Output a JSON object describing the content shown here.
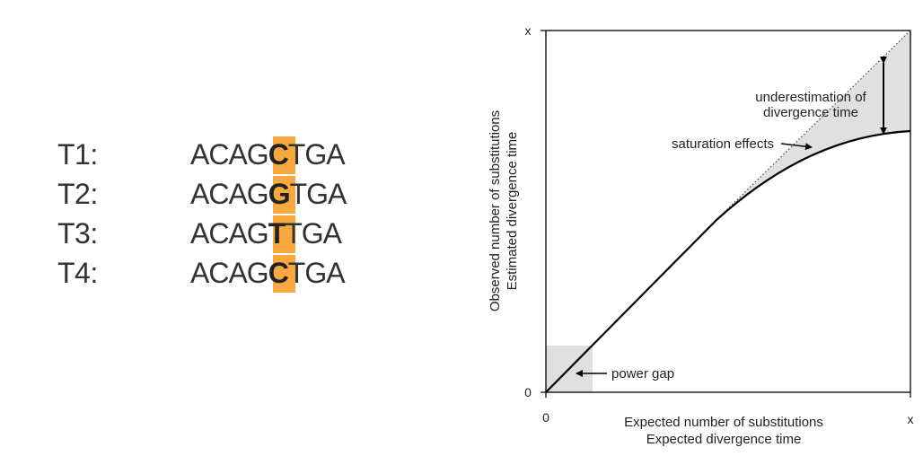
{
  "alignment": {
    "highlight_color": "#f7a940",
    "rows": [
      {
        "taxon": "T1:",
        "prefix": "ACAG",
        "site": "C",
        "suffix": "TGA"
      },
      {
        "taxon": "T2:",
        "prefix": "ACAG",
        "site": "G",
        "suffix": "TGA"
      },
      {
        "taxon": "T3:",
        "prefix": "ACAG",
        "site": "T",
        "suffix": "TGA"
      },
      {
        "taxon": "T4:",
        "prefix": "ACAG",
        "site": "C",
        "suffix": "TGA"
      }
    ]
  },
  "saturation_plot": {
    "ylabel_line1": "Observed number of substitutions",
    "ylabel_line2": "Estimated divergence time",
    "xlabel_line1": "Expected number of substitutions",
    "xlabel_line2": "Expected divergence time",
    "x_origin_label": "0",
    "x_max_label": "x",
    "y_origin_label": "0",
    "y_max_label": "x",
    "annotations": {
      "underestimation_line1": "underestimation of",
      "underestimation_line2": "divergence time",
      "saturation": "saturation effects",
      "power_gap": "power gap"
    },
    "shade_color": "#e0e0e0"
  }
}
